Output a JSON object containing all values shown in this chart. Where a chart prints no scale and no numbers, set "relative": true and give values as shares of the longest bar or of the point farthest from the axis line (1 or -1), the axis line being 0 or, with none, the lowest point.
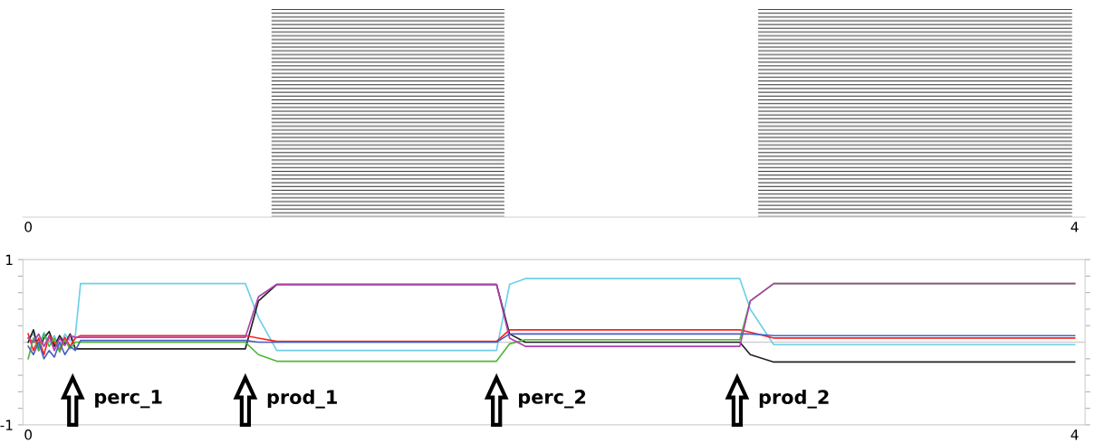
{
  "chart_data": [
    {
      "type": "area",
      "relative": true,
      "xlim": [
        -0.02,
        4.04
      ],
      "xticks": [
        0,
        4
      ],
      "tick_labels": "x",
      "x": [
        0,
        0.93,
        0.93,
        1.82,
        1.82,
        2.79,
        2.79,
        3.99
      ],
      "series": [
        {
          "color": "#000000",
          "values": [
            0,
            0,
            1,
            1,
            0,
            0,
            1,
            1
          ]
        }
      ]
    },
    {
      "type": "line",
      "xlim": [
        -0.02,
        4.04
      ],
      "xticks": [
        0,
        4
      ],
      "ylim": [
        -1,
        1
      ],
      "yticks": [
        {
          "value": -1,
          "label": "-1"
        },
        {
          "value": -0.8,
          "label": null
        },
        {
          "value": -0.6,
          "label": null
        },
        {
          "value": -0.4,
          "label": null
        },
        {
          "value": -0.2,
          "label": null
        },
        {
          "value": 0.2,
          "label": null
        },
        {
          "value": 0.4,
          "label": null
        },
        {
          "value": 0.6,
          "label": null
        },
        {
          "value": 0.8,
          "label": null
        },
        {
          "value": 1,
          "label": "1"
        }
      ],
      "ref_lines": [
        {
          "axis": "y",
          "value": 0,
          "color": "#d0d0d0"
        },
        {
          "axis": "x",
          "value": 0.17,
          "label": "perc_1"
        },
        {
          "axis": "x",
          "value": 0.83,
          "label": "prod_1"
        },
        {
          "axis": "x",
          "value": 1.79,
          "label": "perc_2"
        },
        {
          "axis": "x",
          "value": 2.71,
          "label": "prod_2"
        }
      ],
      "x": [
        0,
        0.02,
        0.04,
        0.06,
        0.08,
        0.1,
        0.12,
        0.14,
        0.16,
        0.18,
        0.2,
        0.83,
        0.88,
        0.95,
        1.79,
        1.84,
        1.9,
        2.72,
        2.76,
        2.85,
        4.0
      ],
      "series": [
        {
          "color": "#6cd0e8",
          "values": [
            0.05,
            0.1,
            -0.05,
            0.12,
            0.0,
            0.08,
            -0.08,
            0.1,
            0.02,
            0.08,
            0.71,
            0.71,
            0.3,
            -0.1,
            -0.1,
            0.7,
            0.77,
            0.77,
            0.4,
            -0.03,
            -0.03
          ]
        },
        {
          "color": "#222222",
          "values": [
            0.0,
            0.15,
            -0.1,
            0.05,
            0.13,
            -0.05,
            0.08,
            -0.02,
            0.1,
            -0.08,
            -0.08,
            -0.08,
            0.5,
            0.7,
            0.7,
            0.1,
            0.0,
            0.0,
            -0.15,
            -0.24,
            -0.24
          ]
        },
        {
          "color": "#ff2020",
          "values": [
            0.1,
            -0.1,
            0.05,
            -0.15,
            0.08,
            0.0,
            -0.1,
            0.06,
            -0.05,
            0.05,
            0.08,
            0.08,
            0.05,
            0.01,
            0.01,
            0.15,
            0.15,
            0.15,
            0.12,
            0.05,
            0.05
          ]
        },
        {
          "color": "#4fb83a",
          "values": [
            -0.2,
            0.05,
            -0.1,
            0.1,
            -0.05,
            0.05,
            -0.12,
            0.03,
            -0.08,
            0.0,
            0.0,
            0.0,
            -0.15,
            -0.23,
            -0.23,
            -0.02,
            0.03,
            0.03,
            0.5,
            0.71,
            0.71
          ]
        },
        {
          "color": "#b040b0",
          "values": [
            0.05,
            0.0,
            0.1,
            -0.05,
            0.07,
            -0.1,
            0.05,
            -0.04,
            0.08,
            0.06,
            0.06,
            0.06,
            0.55,
            0.7,
            0.7,
            0.05,
            -0.05,
            -0.05,
            0.5,
            0.71,
            0.71
          ]
        },
        {
          "color": "#4a60c0",
          "values": [
            -0.05,
            -0.15,
            0.0,
            -0.2,
            -0.1,
            -0.18,
            0.0,
            -0.15,
            -0.05,
            -0.1,
            0.02,
            0.02,
            0.0,
            0.0,
            0.0,
            0.1,
            0.1,
            0.1,
            0.1,
            0.08,
            0.08
          ]
        }
      ]
    }
  ]
}
